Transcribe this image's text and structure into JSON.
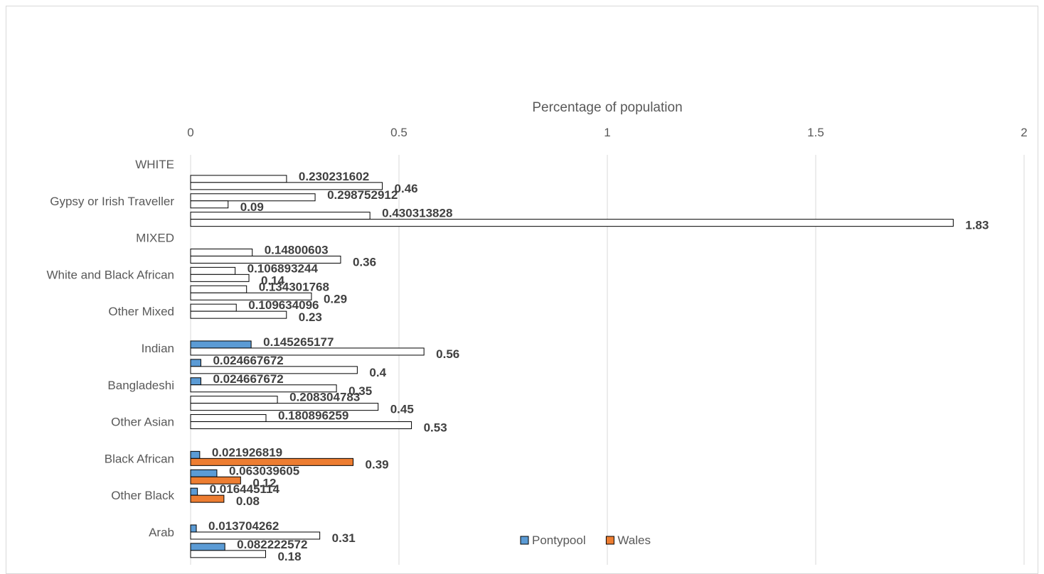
{
  "chart_data": {
    "type": "bar",
    "orientation": "horizontal",
    "xlabel": "Percentage of population",
    "xlim": [
      0,
      2
    ],
    "xticks": [
      "0",
      "0.5",
      "1",
      "1.5",
      "2"
    ],
    "x_axis_position": "top",
    "grid": true,
    "legend_placement": "bottom-center",
    "visible_category_labels": [
      "WHITE",
      "Gypsy or Irish Traveller",
      "MIXED",
      "White and Black African",
      "Other Mixed",
      "Indian",
      "Bangladeshi",
      "Other Asian",
      "Black African",
      "Other Black",
      "Arab"
    ],
    "series": [
      {
        "name": "Pontypool",
        "color": "#5b9bd5"
      },
      {
        "name": "Wales",
        "color": "#ed7d31"
      }
    ],
    "rows": [
      {
        "category": "WHITE",
        "bars": []
      },
      {
        "category": "",
        "bars": [
          {
            "series": "Pontypool",
            "value": 0.230231602,
            "label": "0.230231602",
            "fill": "none"
          },
          {
            "series": "Wales",
            "value": 0.46,
            "label": "0.46",
            "fill": "none"
          }
        ]
      },
      {
        "category": "Gypsy or Irish Traveller",
        "bars": [
          {
            "series": "Pontypool",
            "value": 0.298752912,
            "label": "0.298752912",
            "fill": "none"
          },
          {
            "series": "Wales",
            "value": 0.09,
            "label": "0.09",
            "fill": "none"
          }
        ]
      },
      {
        "category": "",
        "bars": [
          {
            "series": "Pontypool",
            "value": 0.430313828,
            "label": "0.430313828",
            "fill": "none"
          },
          {
            "series": "Wales",
            "value": 1.83,
            "label": "1.83",
            "fill": "none"
          }
        ]
      },
      {
        "category": "MIXED",
        "bars": []
      },
      {
        "category": "",
        "bars": [
          {
            "series": "Pontypool",
            "value": 0.14800603,
            "label": "0.14800603",
            "fill": "none"
          },
          {
            "series": "Wales",
            "value": 0.36,
            "label": "0.36",
            "fill": "none"
          }
        ]
      },
      {
        "category": "White and Black African",
        "bars": [
          {
            "series": "Pontypool",
            "value": 0.106893244,
            "label": "0.106893244",
            "fill": "none"
          },
          {
            "series": "Wales",
            "value": 0.14,
            "label": "0.14",
            "fill": "none"
          }
        ]
      },
      {
        "category": "",
        "bars": [
          {
            "series": "Pontypool",
            "value": 0.134301768,
            "label": "0.134301768",
            "fill": "none"
          },
          {
            "series": "Wales",
            "value": 0.29,
            "label": "0.29",
            "fill": "none"
          }
        ]
      },
      {
        "category": "Other Mixed",
        "bars": [
          {
            "series": "Pontypool",
            "value": 0.109634096,
            "label": "0.109634096",
            "fill": "none"
          },
          {
            "series": "Wales",
            "value": 0.23,
            "label": "0.23",
            "fill": "none"
          }
        ]
      },
      {
        "category": "",
        "bars": []
      },
      {
        "category": "Indian",
        "bars": [
          {
            "series": "Pontypool",
            "value": 0.145265177,
            "label": "0.145265177",
            "fill": "series"
          },
          {
            "series": "Wales",
            "value": 0.56,
            "label": "0.56",
            "fill": "none"
          }
        ]
      },
      {
        "category": "",
        "bars": [
          {
            "series": "Pontypool",
            "value": 0.024667672,
            "label": "0.024667672",
            "fill": "series"
          },
          {
            "series": "Wales",
            "value": 0.4,
            "label": "0.4",
            "fill": "none"
          }
        ]
      },
      {
        "category": "Bangladeshi",
        "bars": [
          {
            "series": "Pontypool",
            "value": 0.024667672,
            "label": "0.024667672",
            "fill": "series"
          },
          {
            "series": "Wales",
            "value": 0.35,
            "label": "0.35",
            "fill": "none"
          }
        ]
      },
      {
        "category": "",
        "bars": [
          {
            "series": "Pontypool",
            "value": 0.208304783,
            "label": "0.208304783",
            "fill": "none"
          },
          {
            "series": "Wales",
            "value": 0.45,
            "label": "0.45",
            "fill": "none"
          }
        ]
      },
      {
        "category": "Other Asian",
        "bars": [
          {
            "series": "Pontypool",
            "value": 0.180896259,
            "label": "0.180896259",
            "fill": "none"
          },
          {
            "series": "Wales",
            "value": 0.53,
            "label": "0.53",
            "fill": "none"
          }
        ]
      },
      {
        "category": "",
        "bars": []
      },
      {
        "category": "Black African",
        "bars": [
          {
            "series": "Pontypool",
            "value": 0.021926819,
            "label": "0.021926819",
            "fill": "series"
          },
          {
            "series": "Wales",
            "value": 0.39,
            "label": "0.39",
            "fill": "series"
          }
        ]
      },
      {
        "category": "",
        "bars": [
          {
            "series": "Pontypool",
            "value": 0.063039605,
            "label": "0.063039605",
            "fill": "series"
          },
          {
            "series": "Wales",
            "value": 0.12,
            "label": "0.12",
            "fill": "series"
          }
        ]
      },
      {
        "category": "Other Black",
        "bars": [
          {
            "series": "Pontypool",
            "value": 0.016445114,
            "label": "0.016445114",
            "fill": "series"
          },
          {
            "series": "Wales",
            "value": 0.08,
            "label": "0.08",
            "fill": "series"
          }
        ]
      },
      {
        "category": "",
        "bars": []
      },
      {
        "category": "Arab",
        "bars": [
          {
            "series": "Pontypool",
            "value": 0.013704262,
            "label": "0.013704262",
            "fill": "series"
          },
          {
            "series": "Wales",
            "value": 0.31,
            "label": "0.31",
            "fill": "none"
          }
        ]
      },
      {
        "category": "",
        "bars": [
          {
            "series": "Pontypool",
            "value": 0.082222572,
            "label": "0.082222572",
            "fill": "series"
          },
          {
            "series": "Wales",
            "value": 0.18,
            "label": "0.18",
            "fill": "none"
          }
        ]
      }
    ]
  }
}
